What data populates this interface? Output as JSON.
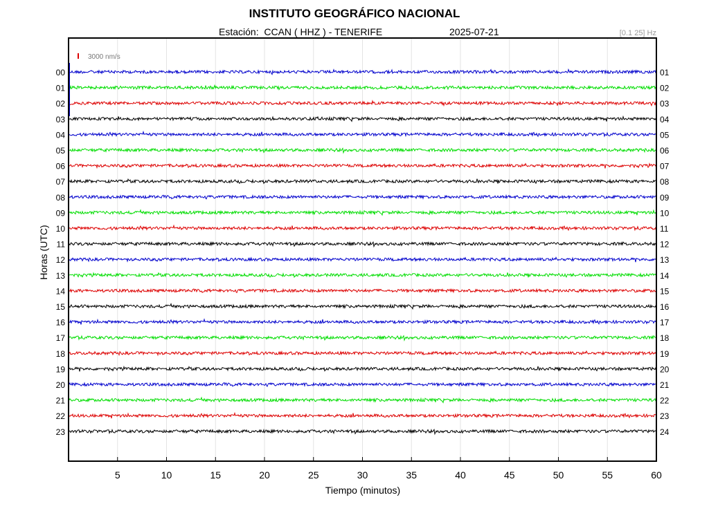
{
  "header": {
    "title": "INSTITUTO GEOGRÁFICO NACIONAL",
    "subtitle": "Estación:  CCAN ( HHZ ) - TENERIFE",
    "date": "2025-07-21",
    "filter": "[0.1 25] Hz"
  },
  "scale_label": "3000 nm/s",
  "chart_data": {
    "type": "line",
    "xlabel": "Tiempo (minutos)",
    "ylabel": "Horas (UTC)",
    "xlim": [
      0,
      60
    ],
    "x_ticks": [
      5,
      10,
      15,
      20,
      25,
      30,
      35,
      40,
      45,
      50,
      55,
      60
    ],
    "left_hour_labels": [
      "00",
      "01",
      "02",
      "03",
      "04",
      "05",
      "06",
      "07",
      "08",
      "09",
      "10",
      "11",
      "12",
      "13",
      "14",
      "15",
      "16",
      "17",
      "18",
      "19",
      "20",
      "21",
      "22",
      "23"
    ],
    "right_hour_labels": [
      "01",
      "02",
      "03",
      "04",
      "05",
      "06",
      "07",
      "08",
      "09",
      "10",
      "11",
      "12",
      "13",
      "14",
      "15",
      "16",
      "17",
      "18",
      "19",
      "20",
      "21",
      "22",
      "23",
      "24"
    ],
    "trace_colors": [
      "#0000cc",
      "#00dd00",
      "#dd0000",
      "#000000"
    ],
    "scale_bar_color": "#dd0000",
    "grid": true
  }
}
